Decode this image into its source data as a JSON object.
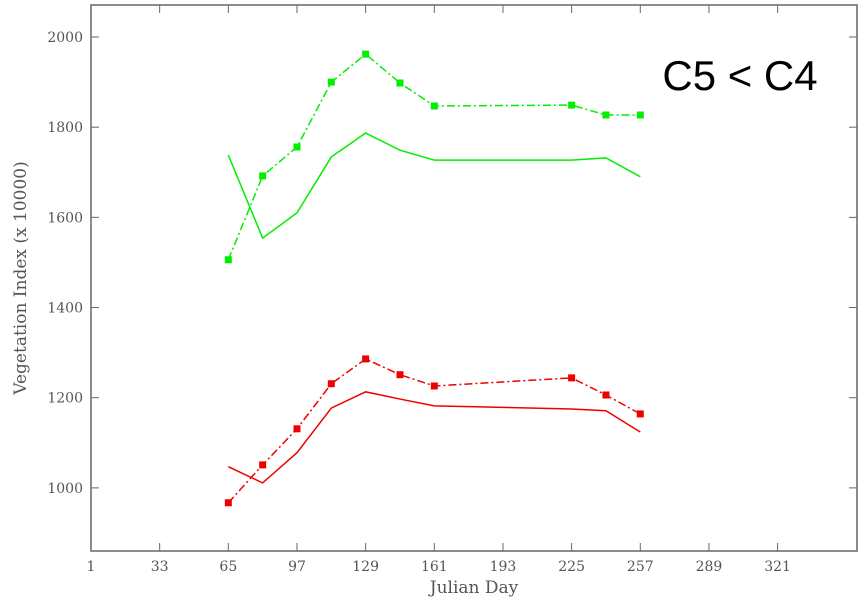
{
  "chart_data": {
    "type": "line",
    "x_label": "Julian Day",
    "y_label": "Vegetation Index (x 10000)",
    "annotation": "C5 < C4",
    "x": [
      65,
      81,
      97,
      113,
      129,
      145,
      161,
      225,
      241,
      257
    ],
    "series": [
      {
        "color": "#00ee00",
        "dashed": true,
        "markers": true,
        "values": [
          1506,
          1692,
          1756,
          1900,
          1962,
          1898,
          1847,
          1849,
          1827,
          1827
        ]
      },
      {
        "color": "#00ee00",
        "dashed": false,
        "markers": false,
        "values": [
          1738,
          1554,
          1610,
          1734,
          1787,
          1749,
          1727,
          1727,
          1732,
          1690
        ]
      },
      {
        "color": "#ee0000",
        "dashed": true,
        "markers": true,
        "values": [
          967,
          1051,
          1131,
          1231,
          1286,
          1251,
          1226,
          1244,
          1206,
          1164
        ]
      },
      {
        "color": "#ee0000",
        "dashed": false,
        "markers": false,
        "values": [
          1047,
          1011,
          1078,
          1177,
          1213,
          1197,
          1182,
          1175,
          1171,
          1124
        ]
      }
    ],
    "xlim": [
      1,
      358
    ],
    "xticks": [
      1,
      33,
      65,
      97,
      129,
      161,
      193,
      225,
      257,
      289,
      321
    ],
    "ylim": [
      860,
      2071
    ],
    "yticks": [
      1000,
      1200,
      1400,
      1600,
      1800,
      2000
    ]
  }
}
